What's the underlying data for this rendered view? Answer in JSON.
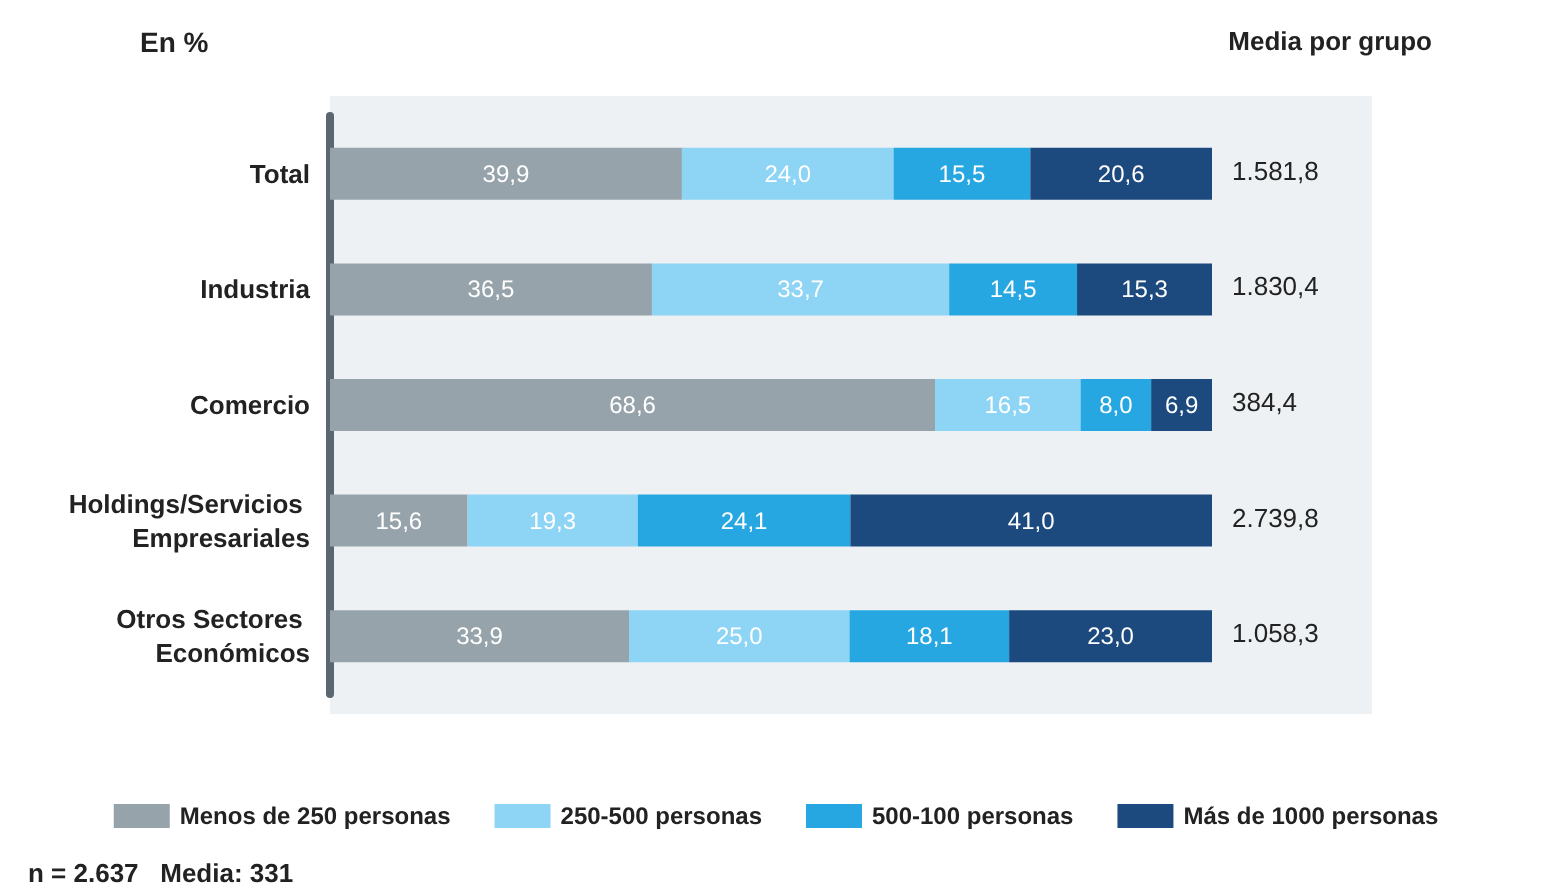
{
  "chart_data": {
    "type": "bar",
    "orientation": "horizontal",
    "stacked": true,
    "ylabel": "En %",
    "categories": [
      "Total",
      "Industria",
      "Comercio",
      "Holdings/Servicios Empresariales",
      "Otros Sectores Económicos"
    ],
    "series": [
      {
        "name": "Menos de 250 personas",
        "color": "#97a3ab",
        "values": [
          39.9,
          36.5,
          68.6,
          15.6,
          33.9
        ],
        "value_labels": [
          "39,9",
          "36,5",
          "68,6",
          "15,6",
          "33,9"
        ]
      },
      {
        "name": "250-500 personas",
        "color": "#8dd4f5",
        "values": [
          24.0,
          33.7,
          16.5,
          19.3,
          25.0
        ],
        "value_labels": [
          "24,0",
          "33,7",
          "16,5",
          "19,3",
          "25,0"
        ]
      },
      {
        "name": "500-100 personas",
        "color": "#27a7e1",
        "values": [
          15.5,
          14.5,
          8.0,
          24.1,
          18.1
        ],
        "value_labels": [
          "15,5",
          "14,5",
          "8,0",
          "24,1",
          "18,1"
        ]
      },
      {
        "name": "Más de 1000 personas",
        "color": "#1c4a7e",
        "values": [
          20.6,
          15.3,
          6.9,
          41.0,
          23.0
        ],
        "value_labels": [
          "20,6",
          "15,3",
          "6,9",
          "41,0",
          "23,0"
        ]
      }
    ],
    "annotations": [
      "Media por grupo",
      "1.581,8",
      "1.830,4",
      "384,4",
      "2.739,8",
      "1.058,3",
      "n = 2.637   Media: 331"
    ],
    "legend": "bottom"
  }
}
